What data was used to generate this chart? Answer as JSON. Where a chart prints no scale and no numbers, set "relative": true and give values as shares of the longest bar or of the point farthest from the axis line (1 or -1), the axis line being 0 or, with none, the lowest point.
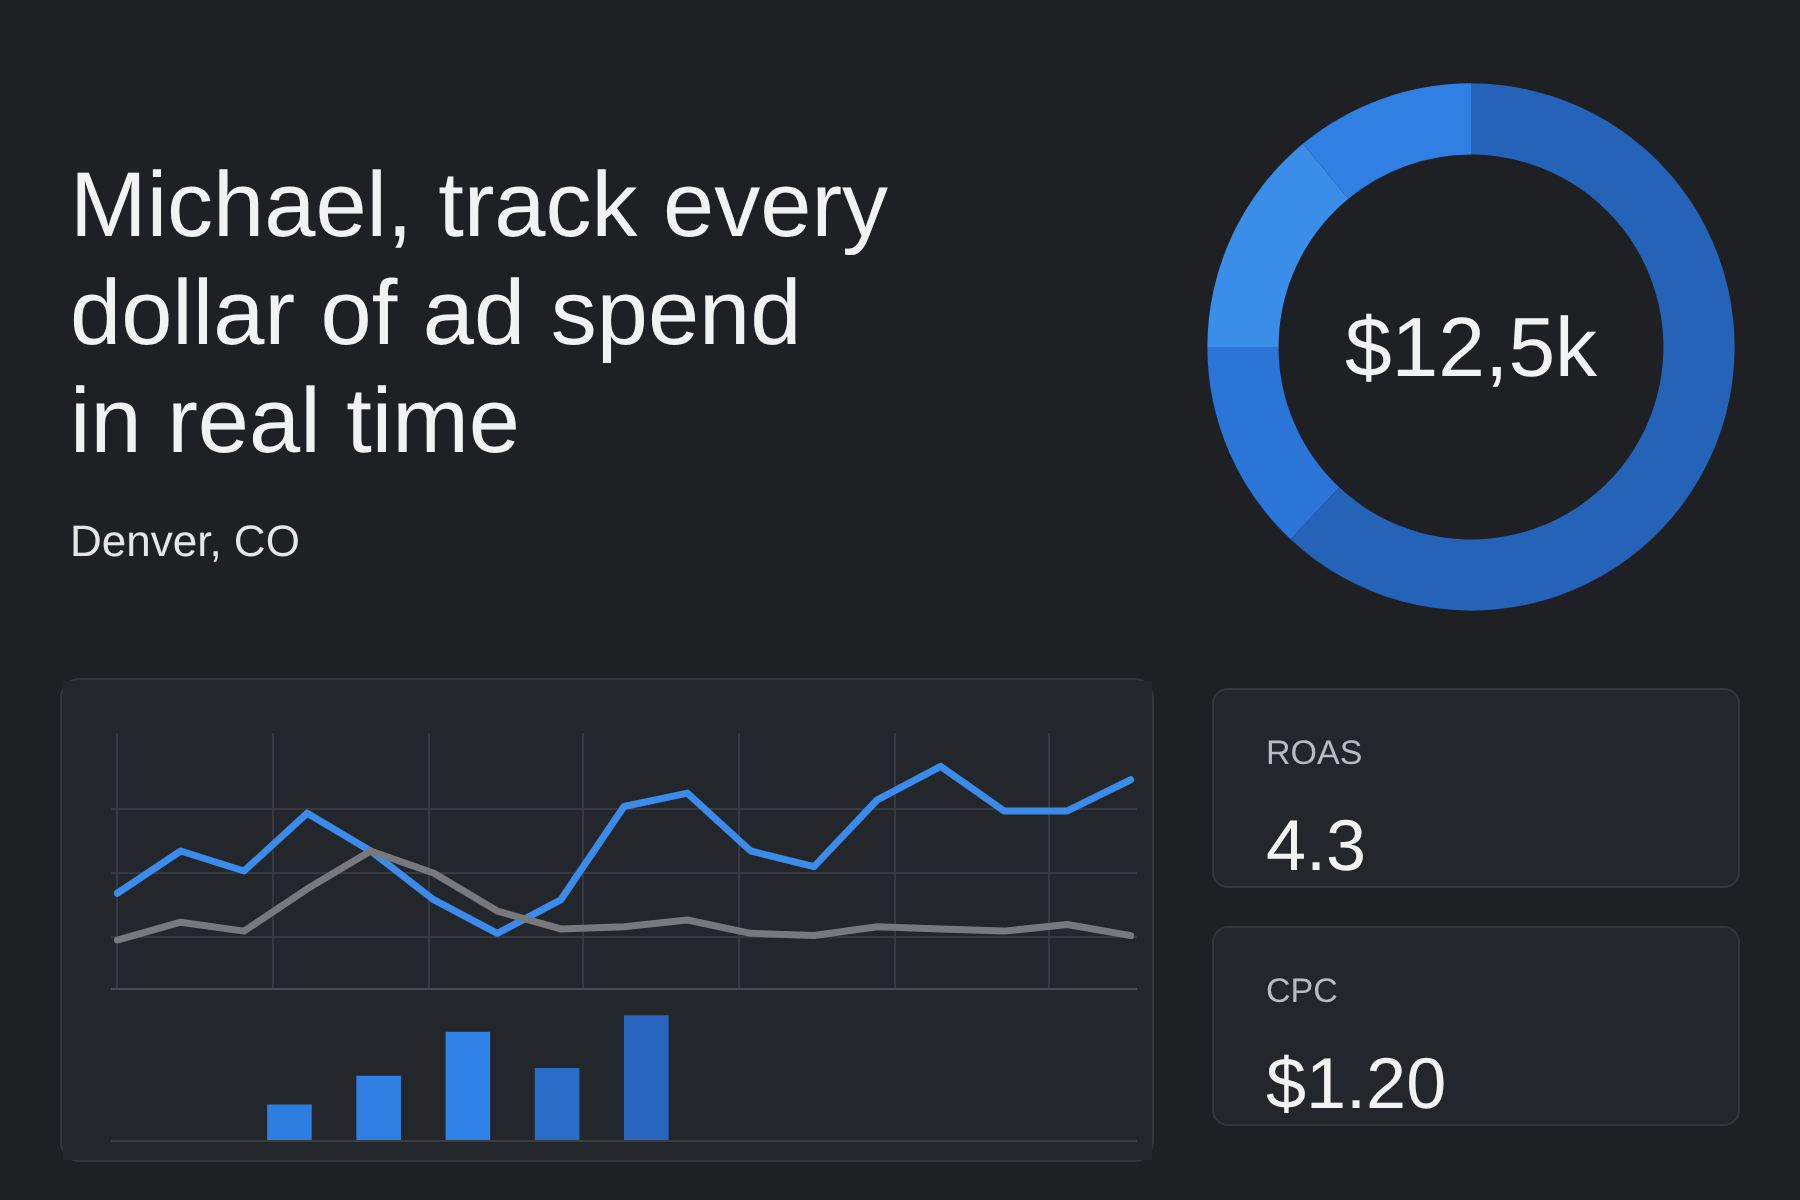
{
  "chart_data": [
    {
      "type": "other",
      "title": "Michael, track every dollar of ad spend in real time",
      "subtitle": "Denver, CO"
    },
    {
      "type": "donut",
      "categories": [
        null,
        null,
        null,
        null
      ],
      "values": [
        62,
        13,
        14,
        11
      ],
      "colors": [
        "#2563b8",
        "#2b74d8",
        "#3a8de8",
        "#2f80e2"
      ],
      "annotations": [
        "$12,5k"
      ]
    },
    {
      "type": "line",
      "relative": true,
      "grid": true,
      "categories": [
        null,
        null,
        null,
        null,
        null,
        null,
        null,
        null,
        null,
        null,
        null,
        null,
        null,
        null,
        null,
        null,
        null
      ],
      "series": [
        {
          "color": "#3b8beb",
          "values": [
            0.43,
            0.62,
            0.53,
            0.79,
            0.62,
            0.4,
            0.25,
            0.4,
            0.82,
            0.88,
            0.62,
            0.55,
            0.85,
            1.0,
            0.8,
            0.8,
            0.94
          ]
        },
        {
          "color": "#77797d",
          "values": [
            0.22,
            0.3,
            0.26,
            0.45,
            0.62,
            0.52,
            0.35,
            0.27,
            0.28,
            0.31,
            0.25,
            0.24,
            0.28,
            0.27,
            0.26,
            0.29,
            0.24
          ]
        }
      ]
    },
    {
      "type": "bar",
      "relative": true,
      "categories": [
        null,
        null,
        null,
        null,
        null
      ],
      "values": [
        0.29,
        0.52,
        0.87,
        0.58,
        1.0
      ],
      "colors": [
        "#2e7de0",
        "#2f7fe2",
        "#3083e6",
        "#2a6dc8",
        "#2866c0"
      ]
    },
    {
      "type": "other",
      "annotations": [
        "ROAS",
        "4.3",
        "CPC",
        "$1.20"
      ]
    }
  ]
}
